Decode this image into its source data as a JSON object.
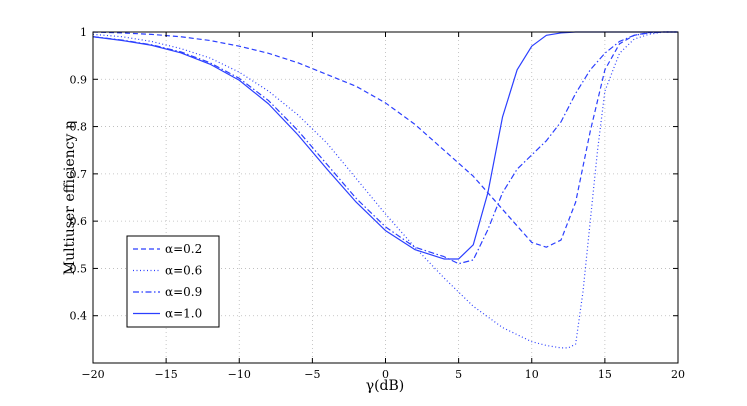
{
  "chart_data": {
    "type": "line",
    "title": "",
    "xlabel": "γ(dB)",
    "ylabel": "Multiuser efficiency η",
    "xlim": [
      -20,
      20
    ],
    "ylim": [
      0.3,
      1.0
    ],
    "xticks": [
      -20,
      -15,
      -10,
      -5,
      0,
      5,
      10,
      15,
      20
    ],
    "yticks": [
      0.4,
      0.5,
      0.6,
      0.7,
      0.8,
      0.9,
      1
    ],
    "grid": true,
    "legend_position": "lower-left",
    "line_color": "#2b3fff",
    "series": [
      {
        "name": "α=0.2",
        "style": "dashed",
        "x": [
          -20,
          -18,
          -16,
          -14,
          -12,
          -10,
          -8,
          -6,
          -4,
          -2,
          0,
          2,
          4,
          6,
          8,
          9,
          10,
          11,
          12,
          13,
          14,
          15,
          16,
          17,
          18,
          19,
          20
        ],
        "y": [
          1.0,
          0.998,
          0.995,
          0.99,
          0.982,
          0.97,
          0.955,
          0.935,
          0.91,
          0.885,
          0.85,
          0.805,
          0.75,
          0.695,
          0.625,
          0.59,
          0.555,
          0.545,
          0.56,
          0.64,
          0.79,
          0.92,
          0.975,
          0.993,
          0.999,
          1.0,
          1.0
        ]
      },
      {
        "name": "α=0.6",
        "style": "dotted",
        "x": [
          -20,
          -18,
          -16,
          -14,
          -12,
          -10,
          -8,
          -6,
          -4,
          -2,
          0,
          2,
          4,
          6,
          8,
          10,
          11,
          12,
          12.5,
          13,
          13.5,
          14,
          14.5,
          15,
          16,
          17,
          18,
          19,
          20
        ],
        "y": [
          0.995,
          0.99,
          0.98,
          0.965,
          0.945,
          0.915,
          0.875,
          0.825,
          0.765,
          0.69,
          0.615,
          0.545,
          0.48,
          0.42,
          0.375,
          0.345,
          0.337,
          0.332,
          0.332,
          0.34,
          0.45,
          0.6,
          0.75,
          0.875,
          0.955,
          0.985,
          0.995,
          1.0,
          1.0
        ]
      },
      {
        "name": "α=0.9",
        "style": "dashdot",
        "x": [
          -20,
          -18,
          -16,
          -14,
          -12,
          -10,
          -8,
          -6,
          -4,
          -2,
          0,
          2,
          4,
          5,
          6,
          7,
          8,
          9,
          10,
          11,
          12,
          13,
          14,
          15,
          16,
          17,
          18,
          19,
          20
        ],
        "y": [
          0.99,
          0.983,
          0.973,
          0.958,
          0.935,
          0.902,
          0.855,
          0.792,
          0.72,
          0.648,
          0.588,
          0.545,
          0.525,
          0.51,
          0.518,
          0.582,
          0.66,
          0.71,
          0.74,
          0.77,
          0.81,
          0.87,
          0.92,
          0.955,
          0.98,
          0.993,
          0.998,
          1.0,
          1.0
        ]
      },
      {
        "name": "α=1.0",
        "style": "solid",
        "x": [
          -20,
          -18,
          -16,
          -14,
          -12,
          -10,
          -8,
          -6,
          -4,
          -2,
          0,
          2,
          4,
          5,
          6,
          7,
          8,
          9,
          10,
          11,
          12,
          13,
          14,
          15,
          16,
          17,
          18,
          19,
          20
        ],
        "y": [
          0.99,
          0.982,
          0.972,
          0.956,
          0.932,
          0.898,
          0.848,
          0.783,
          0.71,
          0.64,
          0.58,
          0.54,
          0.52,
          0.52,
          0.55,
          0.66,
          0.82,
          0.92,
          0.97,
          0.993,
          0.998,
          1.0,
          1.0,
          1.0,
          1.0,
          1.0,
          1.0,
          1.0,
          1.0
        ]
      }
    ]
  }
}
